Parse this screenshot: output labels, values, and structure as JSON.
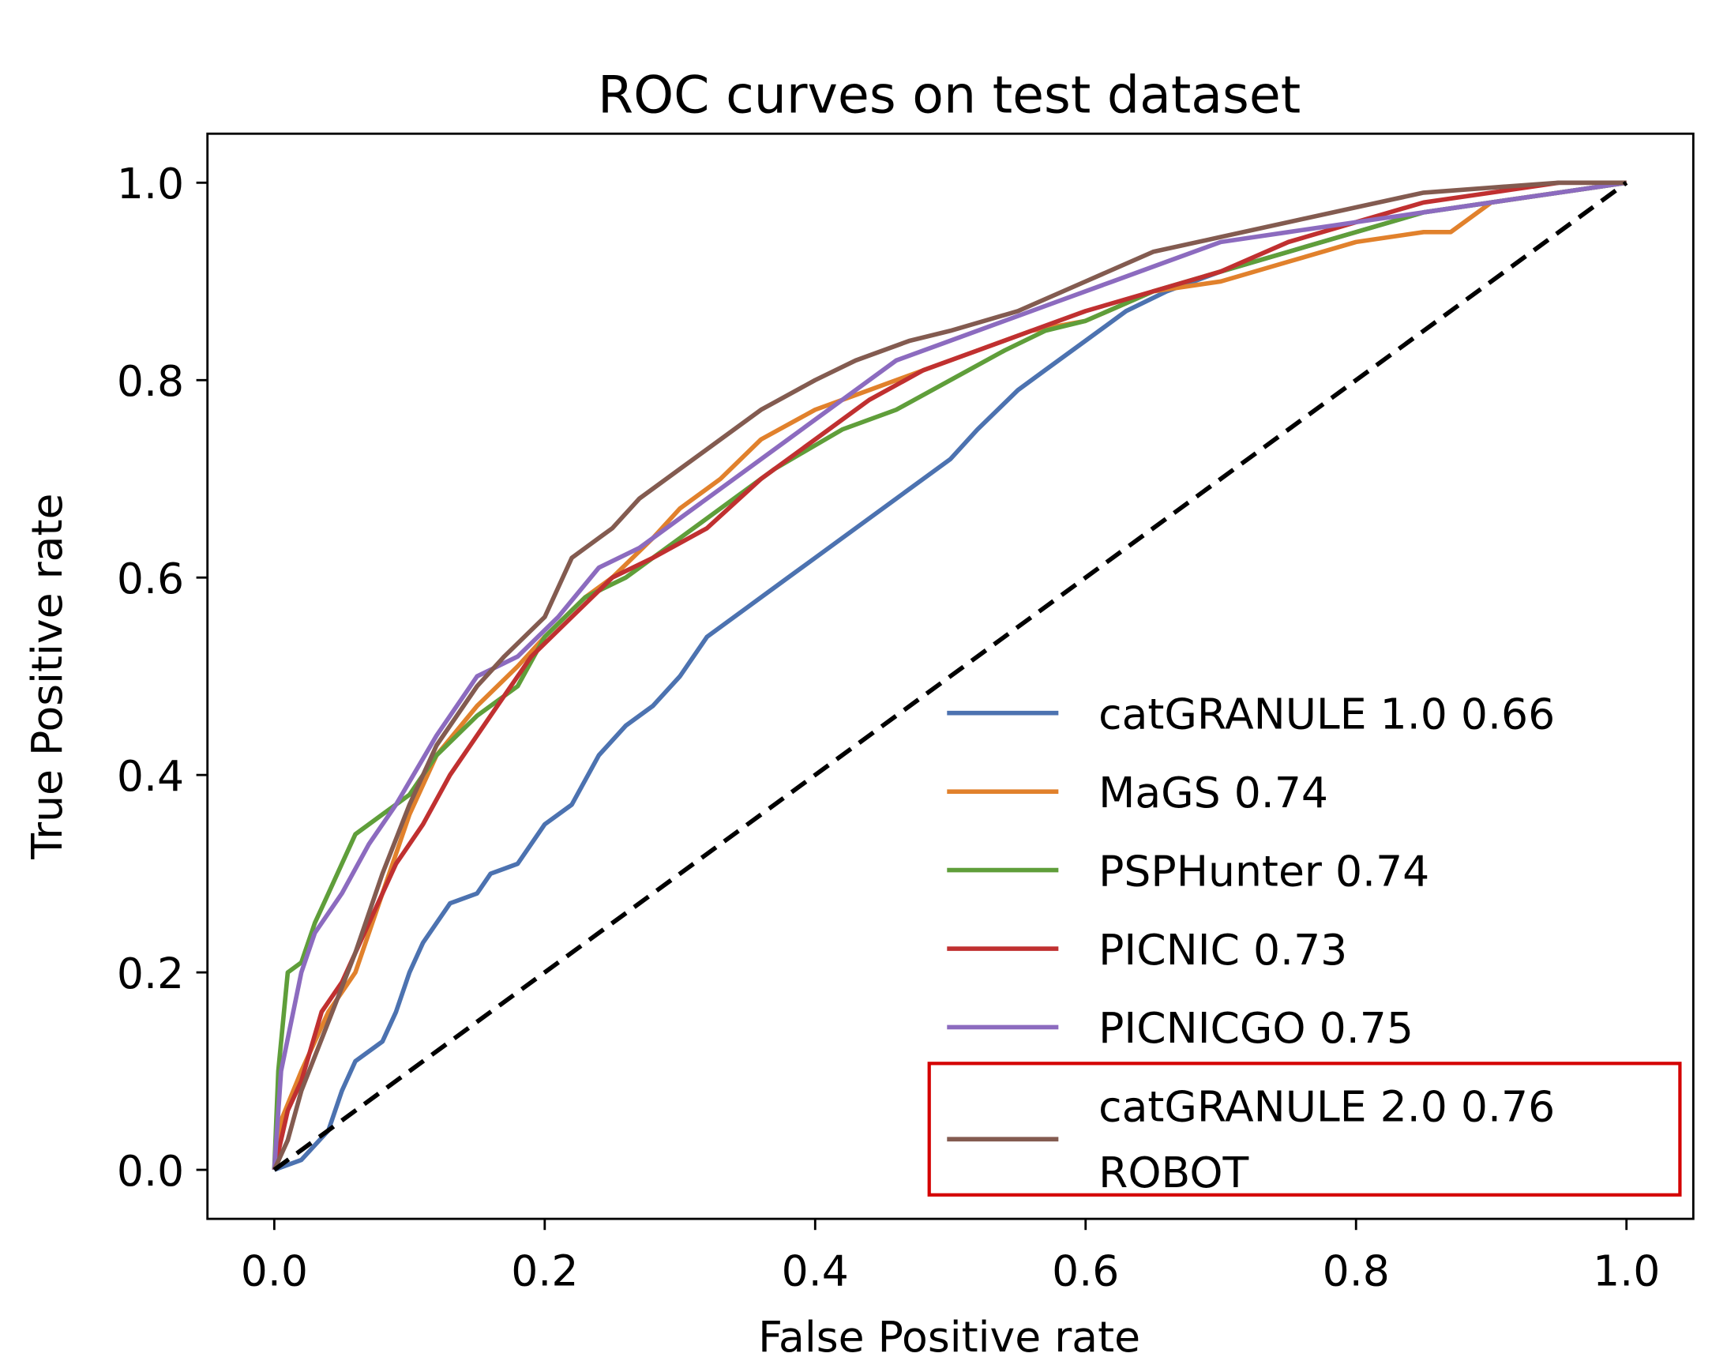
{
  "chart_data": {
    "type": "line",
    "title": "ROC curves on test dataset",
    "xlabel": "False Positive rate",
    "ylabel": "True Positive rate",
    "xlim": [
      -0.05,
      1.05
    ],
    "ylim": [
      -0.05,
      1.05
    ],
    "xticks": [
      "0.0",
      "0.2",
      "0.4",
      "0.6",
      "0.8",
      "1.0"
    ],
    "yticks": [
      "0.0",
      "0.2",
      "0.4",
      "0.6",
      "0.8",
      "1.0"
    ],
    "grid": false,
    "legend_position": "bottom-right",
    "highlight_color": "#d40000",
    "diagonal": {
      "style": "dashed",
      "color": "#000000",
      "x": [
        0,
        1
      ],
      "y": [
        0,
        1
      ]
    },
    "series": [
      {
        "name": "catGRANULE 1.0 0.66",
        "color": "#4c72b0",
        "x": [
          0,
          0.02,
          0.04,
          0.05,
          0.06,
          0.08,
          0.09,
          0.1,
          0.11,
          0.13,
          0.15,
          0.16,
          0.18,
          0.2,
          0.22,
          0.24,
          0.26,
          0.28,
          0.3,
          0.32,
          0.35,
          0.38,
          0.4,
          0.43,
          0.45,
          0.48,
          0.5,
          0.52,
          0.55,
          0.57,
          0.6,
          0.63,
          0.66,
          0.7,
          0.75,
          0.8,
          0.85,
          0.9,
          0.95,
          1
        ],
        "y": [
          0,
          0.01,
          0.04,
          0.08,
          0.11,
          0.13,
          0.16,
          0.2,
          0.23,
          0.27,
          0.28,
          0.3,
          0.31,
          0.35,
          0.37,
          0.42,
          0.45,
          0.47,
          0.5,
          0.54,
          0.57,
          0.6,
          0.62,
          0.65,
          0.67,
          0.7,
          0.72,
          0.75,
          0.79,
          0.81,
          0.84,
          0.87,
          0.89,
          0.91,
          0.93,
          0.95,
          0.97,
          0.98,
          0.99,
          1
        ]
      },
      {
        "name": "MaGS 0.74",
        "color": "#e1812c",
        "x": [
          0,
          0.005,
          0.02,
          0.04,
          0.06,
          0.08,
          0.1,
          0.12,
          0.15,
          0.18,
          0.2,
          0.23,
          0.25,
          0.28,
          0.3,
          0.33,
          0.36,
          0.4,
          0.44,
          0.48,
          0.52,
          0.56,
          0.6,
          0.65,
          0.7,
          0.75,
          0.8,
          0.85,
          0.87,
          0.9,
          0.95,
          1
        ],
        "y": [
          0,
          0.05,
          0.1,
          0.16,
          0.2,
          0.28,
          0.36,
          0.42,
          0.47,
          0.51,
          0.54,
          0.58,
          0.6,
          0.64,
          0.67,
          0.7,
          0.74,
          0.77,
          0.79,
          0.81,
          0.83,
          0.85,
          0.86,
          0.89,
          0.9,
          0.92,
          0.94,
          0.95,
          0.95,
          0.98,
          0.99,
          1
        ]
      },
      {
        "name": "PSPHunter 0.74",
        "color": "#5f9e3a",
        "x": [
          0,
          0.003,
          0.01,
          0.02,
          0.03,
          0.04,
          0.05,
          0.06,
          0.08,
          0.1,
          0.12,
          0.15,
          0.18,
          0.2,
          0.23,
          0.26,
          0.3,
          0.33,
          0.37,
          0.42,
          0.46,
          0.5,
          0.54,
          0.57,
          0.6,
          0.65,
          0.7,
          0.75,
          0.8,
          0.85,
          0.9,
          0.95,
          1
        ],
        "y": [
          0,
          0.1,
          0.2,
          0.21,
          0.25,
          0.28,
          0.31,
          0.34,
          0.36,
          0.38,
          0.42,
          0.46,
          0.49,
          0.54,
          0.58,
          0.6,
          0.64,
          0.67,
          0.71,
          0.75,
          0.77,
          0.8,
          0.83,
          0.85,
          0.86,
          0.89,
          0.91,
          0.93,
          0.95,
          0.97,
          0.98,
          0.99,
          1
        ]
      },
      {
        "name": "PICNIC 0.73",
        "color": "#c03030",
        "x": [
          0,
          0.01,
          0.02,
          0.035,
          0.05,
          0.07,
          0.09,
          0.11,
          0.13,
          0.16,
          0.19,
          0.22,
          0.25,
          0.28,
          0.32,
          0.36,
          0.4,
          0.44,
          0.48,
          0.52,
          0.56,
          0.6,
          0.65,
          0.7,
          0.75,
          0.8,
          0.85,
          0.9,
          0.95,
          1
        ],
        "y": [
          0,
          0.06,
          0.09,
          0.16,
          0.19,
          0.25,
          0.31,
          0.35,
          0.4,
          0.46,
          0.52,
          0.56,
          0.6,
          0.62,
          0.65,
          0.7,
          0.74,
          0.78,
          0.81,
          0.83,
          0.85,
          0.87,
          0.89,
          0.91,
          0.94,
          0.96,
          0.98,
          0.99,
          1,
          1
        ]
      },
      {
        "name": "PICNICGO 0.75",
        "color": "#8c6bbf",
        "x": [
          0,
          0.005,
          0.02,
          0.03,
          0.05,
          0.07,
          0.09,
          0.12,
          0.15,
          0.18,
          0.21,
          0.24,
          0.27,
          0.3,
          0.34,
          0.38,
          0.42,
          0.46,
          0.5,
          0.54,
          0.58,
          0.62,
          0.66,
          0.7,
          0.75,
          0.8,
          0.85,
          0.9,
          0.95,
          1
        ],
        "y": [
          0,
          0.1,
          0.2,
          0.24,
          0.28,
          0.33,
          0.37,
          0.44,
          0.5,
          0.52,
          0.56,
          0.61,
          0.63,
          0.66,
          0.7,
          0.74,
          0.78,
          0.82,
          0.84,
          0.86,
          0.88,
          0.9,
          0.92,
          0.94,
          0.95,
          0.96,
          0.97,
          0.98,
          0.99,
          1
        ]
      },
      {
        "name": "catGRANULE 2.0 0.76",
        "name_line2": "ROBOT",
        "color": "#835b50",
        "highlighted": true,
        "x": [
          0,
          0.01,
          0.02,
          0.04,
          0.06,
          0.08,
          0.1,
          0.12,
          0.15,
          0.17,
          0.2,
          0.22,
          0.25,
          0.27,
          0.3,
          0.33,
          0.36,
          0.4,
          0.43,
          0.47,
          0.5,
          0.55,
          0.6,
          0.65,
          0.7,
          0.75,
          0.8,
          0.85,
          0.9,
          0.95,
          1
        ],
        "y": [
          0,
          0.03,
          0.08,
          0.15,
          0.22,
          0.3,
          0.37,
          0.43,
          0.49,
          0.52,
          0.56,
          0.62,
          0.65,
          0.68,
          0.71,
          0.74,
          0.77,
          0.8,
          0.82,
          0.84,
          0.85,
          0.87,
          0.9,
          0.93,
          0.945,
          0.96,
          0.975,
          0.99,
          0.995,
          1,
          1
        ]
      }
    ]
  }
}
